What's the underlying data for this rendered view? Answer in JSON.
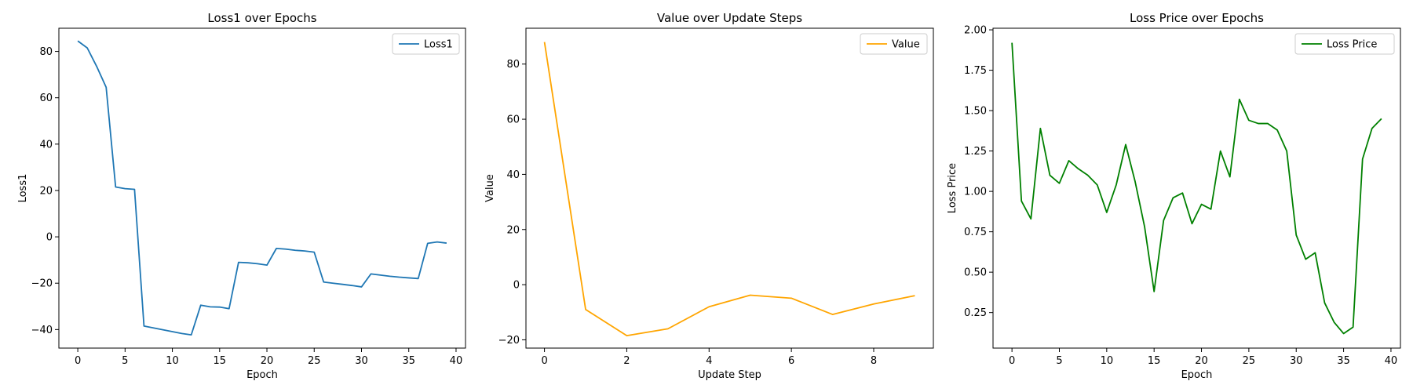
{
  "chart_data": [
    {
      "type": "line",
      "title": "Loss1 over Epochs",
      "xlabel": "Epoch",
      "ylabel": "Loss1",
      "xlim": [
        -2,
        41
      ],
      "ylim": [
        -48,
        90
      ],
      "xticks": [
        0,
        5,
        10,
        15,
        20,
        25,
        30,
        35,
        40
      ],
      "yticks": [
        -40,
        -20,
        0,
        20,
        40,
        60,
        80
      ],
      "grid": false,
      "legend": "top-right",
      "series": [
        {
          "name": "Loss1",
          "color": "#1f77b4",
          "x": [
            0,
            1,
            2,
            3,
            4,
            5,
            6,
            7,
            8,
            9,
            10,
            11,
            12,
            13,
            14,
            15,
            16,
            17,
            18,
            19,
            20,
            21,
            22,
            23,
            24,
            25,
            26,
            27,
            28,
            29,
            30,
            31,
            32,
            33,
            34,
            35,
            36,
            37,
            38,
            39
          ],
          "y": [
            84.5,
            81.5,
            73.5,
            64.5,
            21.5,
            20.8,
            20.5,
            -38.5,
            -39.3,
            -40.1,
            -40.9,
            -41.7,
            -42.3,
            -29.5,
            -30.2,
            -30.3,
            -31,
            -11,
            -11.2,
            -11.6,
            -12.2,
            -5,
            -5.3,
            -5.8,
            -6.1,
            -6.6,
            -19.5,
            -20,
            -20.5,
            -21,
            -21.6,
            -16,
            -16.5,
            -17,
            -17.4,
            -17.7,
            -18,
            -2.8,
            -2.2,
            -2.7
          ]
        }
      ]
    },
    {
      "type": "line",
      "title": "Value over Update Steps",
      "xlabel": "Update Step",
      "ylabel": "Value",
      "xlim": [
        -0.45,
        9.45
      ],
      "ylim": [
        -23,
        93
      ],
      "xticks": [
        0,
        2,
        4,
        6,
        8
      ],
      "yticks": [
        -20,
        0,
        20,
        40,
        60,
        80
      ],
      "grid": false,
      "legend": "top-right",
      "series": [
        {
          "name": "Value",
          "color": "#ffa500",
          "x": [
            0,
            1,
            2,
            3,
            4,
            5,
            6,
            7,
            8,
            9
          ],
          "y": [
            88,
            -9,
            -18.5,
            -16,
            -8,
            -3.8,
            -4.9,
            -10.8,
            -7,
            -4
          ]
        }
      ]
    },
    {
      "type": "line",
      "title": "Loss Price over Epochs",
      "xlabel": "Epoch",
      "ylabel": "Loss Price",
      "xlim": [
        -2,
        41
      ],
      "ylim": [
        0.03,
        2.01
      ],
      "xticks": [
        0,
        5,
        10,
        15,
        20,
        25,
        30,
        35,
        40
      ],
      "yticks": [
        0.25,
        0.5,
        0.75,
        1.0,
        1.25,
        1.5,
        1.75,
        2.0
      ],
      "ytick_labels": [
        "0.25",
        "0.50",
        "0.75",
        "1.00",
        "1.25",
        "1.50",
        "1.75",
        "2.00"
      ],
      "grid": false,
      "legend": "top-right",
      "series": [
        {
          "name": "Loss Price",
          "color": "#008000",
          "x": [
            0,
            1,
            2,
            3,
            4,
            5,
            6,
            7,
            8,
            9,
            10,
            11,
            12,
            13,
            14,
            15,
            16,
            17,
            18,
            19,
            20,
            21,
            22,
            23,
            24,
            25,
            26,
            27,
            28,
            29,
            30,
            31,
            32,
            33,
            34,
            35,
            36,
            37,
            38,
            39
          ],
          "y": [
            1.92,
            0.94,
            0.83,
            1.39,
            1.1,
            1.05,
            1.19,
            1.14,
            1.1,
            1.04,
            0.87,
            1.04,
            1.29,
            1.06,
            0.78,
            0.38,
            0.82,
            0.96,
            0.99,
            0.8,
            0.92,
            0.89,
            1.25,
            1.09,
            1.57,
            1.44,
            1.42,
            1.42,
            1.38,
            1.25,
            0.73,
            0.58,
            0.62,
            0.31,
            0.19,
            0.12,
            0.16,
            1.2,
            1.39,
            1.45
          ]
        }
      ]
    }
  ]
}
